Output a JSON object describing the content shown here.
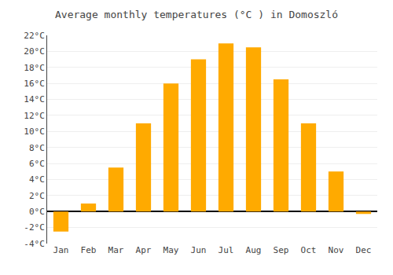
{
  "chart_data": {
    "type": "bar",
    "title": "Average monthly temperatures (°C ) in Domoszló",
    "categories": [
      "Jan",
      "Feb",
      "Mar",
      "Apr",
      "May",
      "Jun",
      "Jul",
      "Aug",
      "Sep",
      "Oct",
      "Nov",
      "Dec"
    ],
    "values": [
      -2.5,
      1.0,
      5.5,
      11.0,
      16.0,
      19.0,
      21.0,
      20.5,
      16.5,
      11.0,
      5.0,
      -0.3
    ],
    "color": "#FFAA00",
    "ylim": [
      -4,
      22
    ],
    "yticks": [
      {
        "value": -4,
        "label": "-4°C"
      },
      {
        "value": -2,
        "label": "-2°C"
      },
      {
        "value": 0,
        "label": "0°C"
      },
      {
        "value": 2,
        "label": "2°C"
      },
      {
        "value": 4,
        "label": "4°C"
      },
      {
        "value": 6,
        "label": "6°C"
      },
      {
        "value": 8,
        "label": "8°C"
      },
      {
        "value": 10,
        "label": "10°C"
      },
      {
        "value": 12,
        "label": "12°C"
      },
      {
        "value": 14,
        "label": "14°C"
      },
      {
        "value": 16,
        "label": "16°C"
      },
      {
        "value": 18,
        "label": "18°C"
      },
      {
        "value": 20,
        "label": "20°C"
      },
      {
        "value": 22,
        "label": "22°C"
      }
    ],
    "grid": true
  }
}
